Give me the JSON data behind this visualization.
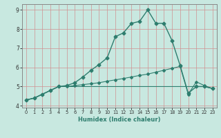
{
  "xlabel": "Humidex (Indice chaleur)",
  "bg_color": "#c8e8e0",
  "grid_color": "#d09090",
  "line_color": "#2e7d6e",
  "spine_color": "#888888",
  "xlim": [
    -0.5,
    23.5
  ],
  "ylim": [
    3.9,
    9.3
  ],
  "yticks": [
    4,
    5,
    6,
    7,
    8,
    9
  ],
  "xticks": [
    0,
    1,
    2,
    3,
    4,
    5,
    6,
    7,
    8,
    9,
    10,
    11,
    12,
    13,
    14,
    15,
    16,
    17,
    18,
    19,
    20,
    21,
    22,
    23
  ],
  "series": [
    {
      "x": [
        0,
        1,
        2,
        3,
        4,
        5,
        6,
        7,
        8,
        9,
        10,
        11,
        12,
        13,
        14,
        15,
        16,
        17,
        18,
        19,
        20,
        21,
        22,
        23
      ],
      "y": [
        4.3,
        4.4,
        4.6,
        4.8,
        5.0,
        5.05,
        5.2,
        5.5,
        5.85,
        6.15,
        6.5,
        7.6,
        7.8,
        8.3,
        8.4,
        9.0,
        8.3,
        8.3,
        7.4,
        6.1,
        4.65,
        5.0,
        5.0,
        4.9
      ],
      "marker": "D",
      "markersize": 2.5,
      "linewidth": 1.0
    },
    {
      "x": [
        0,
        1,
        2,
        3,
        4,
        5,
        6,
        7,
        8,
        9,
        10,
        11,
        12,
        13,
        14,
        15,
        16,
        17,
        18,
        19,
        20,
        21,
        22,
        23
      ],
      "y": [
        4.3,
        4.4,
        4.6,
        4.8,
        5.0,
        5.0,
        5.05,
        5.1,
        5.15,
        5.2,
        5.28,
        5.35,
        5.42,
        5.5,
        5.58,
        5.65,
        5.75,
        5.85,
        5.95,
        6.05,
        4.6,
        5.25,
        5.05,
        4.9
      ],
      "marker": "D",
      "markersize": 2.0,
      "linewidth": 0.8
    },
    {
      "x": [
        0,
        1,
        2,
        3,
        4,
        5,
        6,
        7,
        8,
        9,
        10,
        11,
        12,
        13,
        14,
        15,
        16,
        17,
        18,
        19,
        20,
        21,
        22,
        23
      ],
      "y": [
        4.3,
        4.4,
        4.6,
        4.8,
        5.0,
        5.0,
        5.0,
        5.0,
        5.0,
        5.0,
        5.0,
        5.0,
        5.0,
        5.0,
        5.0,
        5.0,
        5.0,
        5.0,
        5.0,
        5.0,
        5.0,
        5.0,
        5.0,
        4.9
      ],
      "marker": null,
      "markersize": 0,
      "linewidth": 0.8
    }
  ]
}
